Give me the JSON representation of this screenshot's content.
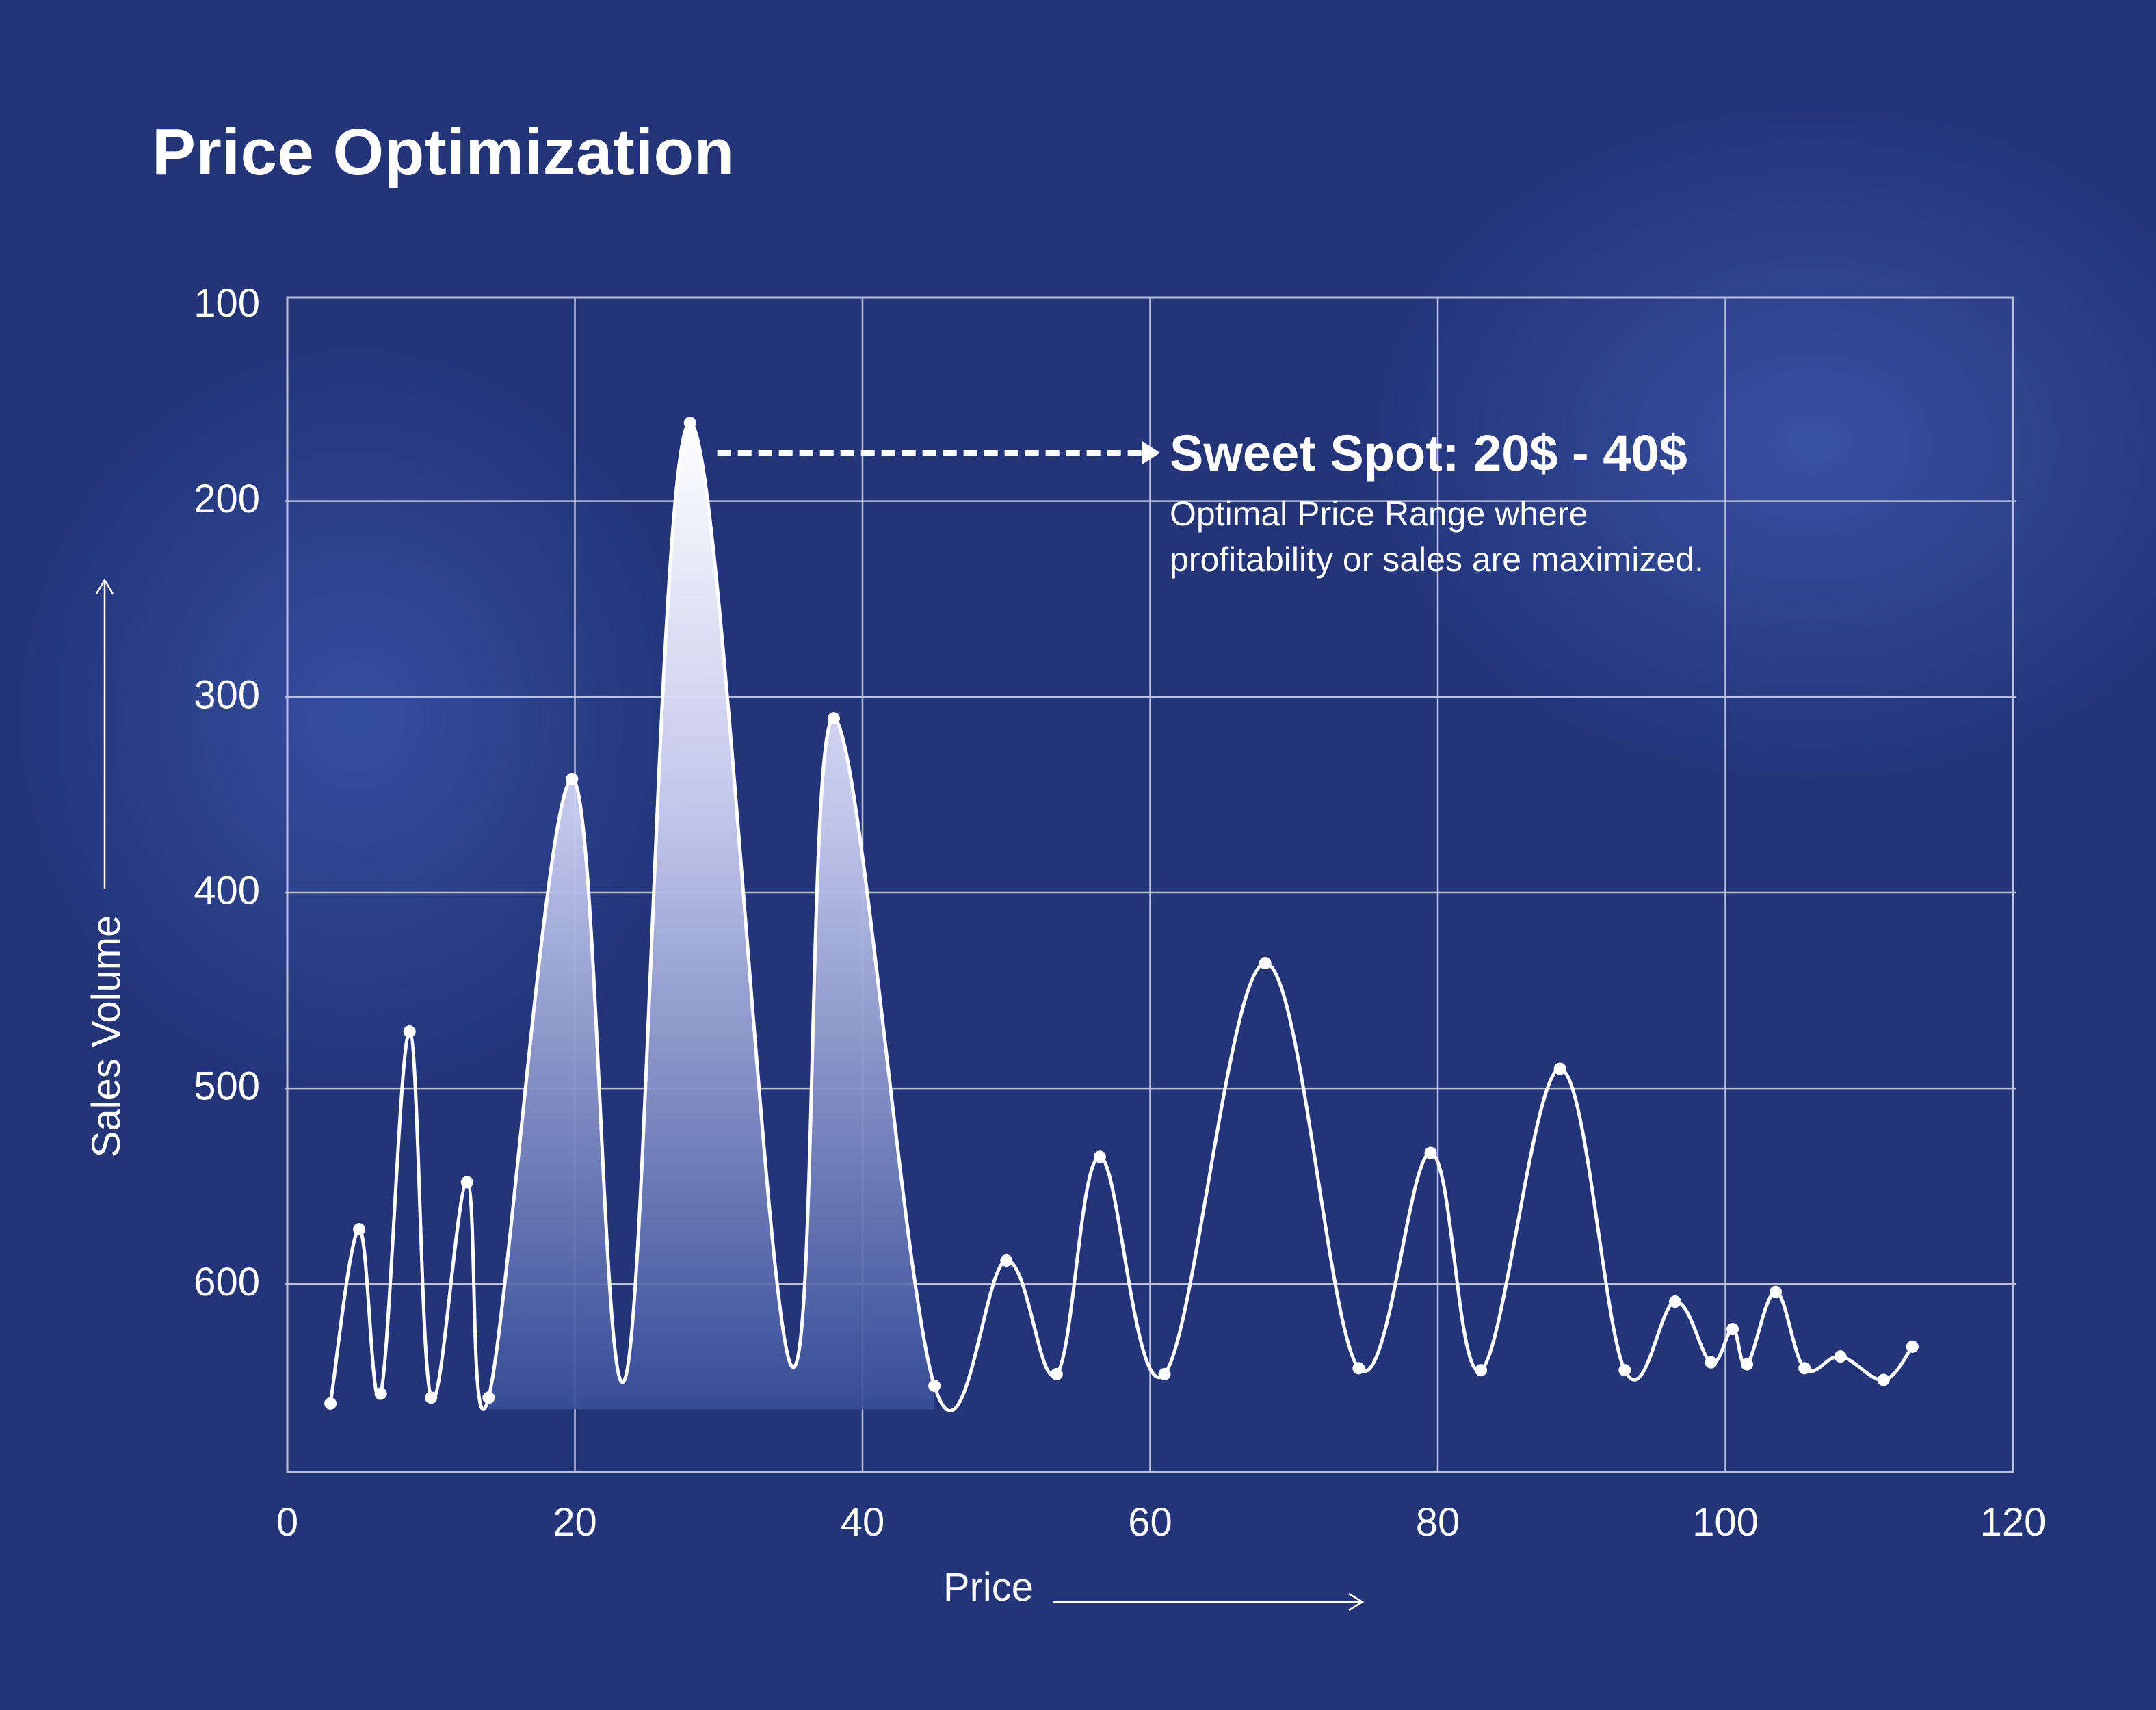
{
  "title": "Price Optimization",
  "colors": {
    "background": "#233479",
    "line": "#ffffff",
    "grid": "#b9c0dc",
    "fill_top": "#ffffff",
    "fill_bottom": "#3a4f9a"
  },
  "chart_data": {
    "type": "area",
    "xlabel": "Price",
    "ylabel": "Sales Volume",
    "xlim": [
      0,
      120
    ],
    "ylim": [
      100,
      700
    ],
    "y_inverted": true,
    "grid": true,
    "x_ticks": [
      "0",
      "20",
      "40",
      "60",
      "80",
      "100",
      "120"
    ],
    "y_ticks": [
      "100",
      "200",
      "300",
      "400",
      "500",
      "600"
    ],
    "x_tick_values": [
      0,
      20,
      40,
      60,
      80,
      100,
      120
    ],
    "y_tick_values": [
      100,
      200,
      300,
      400,
      500,
      600
    ],
    "series": [
      {
        "points": [
          {
            "x": 3,
            "y": 665
          },
          {
            "x": 5,
            "y": 576
          },
          {
            "x": 6.5,
            "y": 660
          },
          {
            "x": 8.5,
            "y": 475
          },
          {
            "x": 10,
            "y": 662
          },
          {
            "x": 12.5,
            "y": 552
          },
          {
            "x": 14,
            "y": 662
          },
          {
            "x": 19.8,
            "y": 346
          },
          {
            "x": 23.5,
            "y": 652
          },
          {
            "x": 28,
            "y": 164
          },
          {
            "x": 35,
            "y": 645
          },
          {
            "x": 38,
            "y": 315
          },
          {
            "x": 45,
            "y": 656
          },
          {
            "x": 50,
            "y": 592
          },
          {
            "x": 53.5,
            "y": 650
          },
          {
            "x": 56.5,
            "y": 539
          },
          {
            "x": 61,
            "y": 650
          },
          {
            "x": 68,
            "y": 440
          },
          {
            "x": 74.5,
            "y": 647
          },
          {
            "x": 79.5,
            "y": 537
          },
          {
            "x": 83,
            "y": 648
          },
          {
            "x": 88.5,
            "y": 494
          },
          {
            "x": 93,
            "y": 648
          },
          {
            "x": 96.5,
            "y": 613
          },
          {
            "x": 99,
            "y": 644
          },
          {
            "x": 100.5,
            "y": 627
          },
          {
            "x": 101.5,
            "y": 645
          },
          {
            "x": 103.5,
            "y": 608
          },
          {
            "x": 105.5,
            "y": 647
          },
          {
            "x": 108,
            "y": 641
          },
          {
            "x": 111,
            "y": 653
          },
          {
            "x": 113,
            "y": 636
          }
        ],
        "markers": [
          3,
          5,
          6.5,
          8.5,
          10,
          12.5,
          14,
          19.8,
          28,
          38,
          45,
          50,
          53.5,
          56.5,
          61,
          68,
          74.5,
          79.5,
          83,
          88.5,
          93,
          96.5,
          99,
          100.5,
          101.5,
          103.5,
          105.5,
          108,
          111,
          113
        ],
        "highlight_range": [
          14,
          45
        ]
      }
    ],
    "annotations": [
      {
        "title": "Sweet Spot: 20$ - 40$",
        "lines": [
          "Optimal Price Range where",
          "profitability or sales are maximized."
        ],
        "arrow_from": {
          "x": 28,
          "y": 164
        }
      }
    ]
  }
}
